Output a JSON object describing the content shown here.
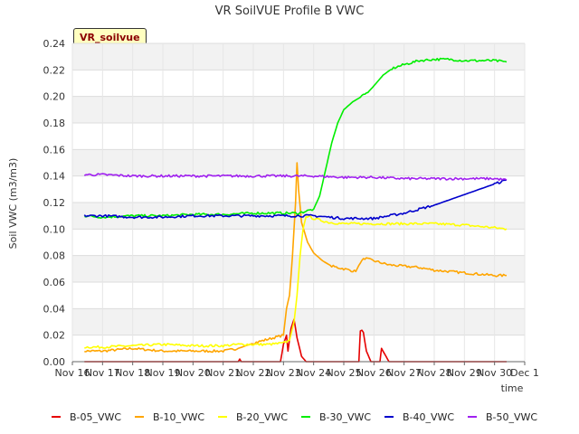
{
  "chart_data": {
    "type": "line",
    "title": "VR SoilVUE Profile B VWC",
    "site_label": "VR_soilvue",
    "xlabel": "time",
    "ylabel": "Soil VWC (m3/m3)",
    "xlim": [
      16,
      31
    ],
    "ylim": [
      0,
      0.24
    ],
    "x_ticks": [
      16,
      17,
      18,
      19,
      20,
      21,
      22,
      23,
      24,
      25,
      26,
      27,
      28,
      29,
      30,
      31
    ],
    "x_tick_labels": [
      "Nov 16",
      "Nov 17",
      "Nov 18",
      "Nov 19",
      "Nov 20",
      "Nov 21",
      "Nov 22",
      "Nov 23",
      "Nov 24",
      "Nov 25",
      "Nov 26",
      "Nov 27",
      "Nov 28",
      "Nov 29",
      "Nov 30",
      "Dec 1"
    ],
    "y_ticks": [
      0.0,
      0.02,
      0.04,
      0.06,
      0.08,
      0.1,
      0.12,
      0.14,
      0.16,
      0.18,
      0.2,
      0.22,
      0.24
    ],
    "y_tick_labels": [
      "0.00",
      "0.02",
      "0.04",
      "0.06",
      "0.08",
      "0.10",
      "0.12",
      "0.14",
      "0.16",
      "0.18",
      "0.20",
      "0.22",
      "0.24"
    ],
    "legend_position": "bottom",
    "series": [
      {
        "name": "B-05_VWC",
        "color": "#e60000",
        "points": [
          [
            16.4,
            0.0
          ],
          [
            21.5,
            0.0
          ],
          [
            21.55,
            0.002
          ],
          [
            21.6,
            0.0
          ],
          [
            22.9,
            0.0
          ],
          [
            23.0,
            0.013
          ],
          [
            23.1,
            0.02
          ],
          [
            23.15,
            0.008
          ],
          [
            23.25,
            0.025
          ],
          [
            23.35,
            0.032
          ],
          [
            23.45,
            0.018
          ],
          [
            23.6,
            0.004
          ],
          [
            23.75,
            0.0
          ],
          [
            25.5,
            0.0
          ],
          [
            25.55,
            0.024
          ],
          [
            25.65,
            0.022
          ],
          [
            25.75,
            0.008
          ],
          [
            25.9,
            0.0
          ],
          [
            26.2,
            0.0
          ],
          [
            26.25,
            0.01
          ],
          [
            26.35,
            0.006
          ],
          [
            26.5,
            0.0
          ],
          [
            30.4,
            0.0
          ]
        ]
      },
      {
        "name": "B-10_VWC",
        "color": "#ffa500",
        "points": [
          [
            16.4,
            0.008
          ],
          [
            17.0,
            0.008
          ],
          [
            18.0,
            0.01
          ],
          [
            19.0,
            0.008
          ],
          [
            20.0,
            0.008
          ],
          [
            21.0,
            0.008
          ],
          [
            21.5,
            0.01
          ],
          [
            22.0,
            0.014
          ],
          [
            22.5,
            0.017
          ],
          [
            23.0,
            0.02
          ],
          [
            23.1,
            0.04
          ],
          [
            23.2,
            0.05
          ],
          [
            23.3,
            0.08
          ],
          [
            23.4,
            0.12
          ],
          [
            23.45,
            0.15
          ],
          [
            23.5,
            0.13
          ],
          [
            23.6,
            0.105
          ],
          [
            23.8,
            0.09
          ],
          [
            24.0,
            0.082
          ],
          [
            24.3,
            0.076
          ],
          [
            24.6,
            0.072
          ],
          [
            25.0,
            0.07
          ],
          [
            25.4,
            0.068
          ],
          [
            25.55,
            0.075
          ],
          [
            25.7,
            0.078
          ],
          [
            26.0,
            0.076
          ],
          [
            26.5,
            0.073
          ],
          [
            27.0,
            0.072
          ],
          [
            27.5,
            0.071
          ],
          [
            28.0,
            0.069
          ],
          [
            28.5,
            0.068
          ],
          [
            29.0,
            0.067
          ],
          [
            29.5,
            0.066
          ],
          [
            30.0,
            0.065
          ],
          [
            30.4,
            0.065
          ]
        ]
      },
      {
        "name": "B-20_VWC",
        "color": "#ffff00",
        "points": [
          [
            16.4,
            0.011
          ],
          [
            17.0,
            0.011
          ],
          [
            18.0,
            0.012
          ],
          [
            19.0,
            0.013
          ],
          [
            20.0,
            0.012
          ],
          [
            21.0,
            0.012
          ],
          [
            21.5,
            0.013
          ],
          [
            22.0,
            0.013
          ],
          [
            22.5,
            0.013
          ],
          [
            23.0,
            0.014
          ],
          [
            23.2,
            0.016
          ],
          [
            23.35,
            0.03
          ],
          [
            23.45,
            0.05
          ],
          [
            23.55,
            0.08
          ],
          [
            23.65,
            0.1
          ],
          [
            23.75,
            0.11
          ],
          [
            24.0,
            0.108
          ],
          [
            24.5,
            0.105
          ],
          [
            25.0,
            0.104
          ],
          [
            25.5,
            0.104
          ],
          [
            26.0,
            0.104
          ],
          [
            27.0,
            0.104
          ],
          [
            28.0,
            0.104
          ],
          [
            29.0,
            0.103
          ],
          [
            29.5,
            0.102
          ],
          [
            30.0,
            0.101
          ],
          [
            30.4,
            0.1
          ]
        ]
      },
      {
        "name": "B-30_VWC",
        "color": "#00ee00",
        "points": [
          [
            16.4,
            0.11
          ],
          [
            17.0,
            0.109
          ],
          [
            18.0,
            0.11
          ],
          [
            19.0,
            0.11
          ],
          [
            20.0,
            0.111
          ],
          [
            21.0,
            0.111
          ],
          [
            22.0,
            0.112
          ],
          [
            23.0,
            0.112
          ],
          [
            23.5,
            0.112
          ],
          [
            24.0,
            0.115
          ],
          [
            24.2,
            0.125
          ],
          [
            24.4,
            0.145
          ],
          [
            24.6,
            0.165
          ],
          [
            24.8,
            0.18
          ],
          [
            25.0,
            0.19
          ],
          [
            25.3,
            0.196
          ],
          [
            25.6,
            0.2
          ],
          [
            25.8,
            0.203
          ],
          [
            26.0,
            0.208
          ],
          [
            26.3,
            0.216
          ],
          [
            26.6,
            0.221
          ],
          [
            27.0,
            0.224
          ],
          [
            27.5,
            0.227
          ],
          [
            28.0,
            0.228
          ],
          [
            28.5,
            0.228
          ],
          [
            29.0,
            0.227
          ],
          [
            29.5,
            0.227
          ],
          [
            30.0,
            0.227
          ],
          [
            30.4,
            0.226
          ]
        ]
      },
      {
        "name": "B-40_VWC",
        "color": "#0000cc",
        "points": [
          [
            16.4,
            0.11
          ],
          [
            17.0,
            0.11
          ],
          [
            18.0,
            0.109
          ],
          [
            19.0,
            0.109
          ],
          [
            20.0,
            0.11
          ],
          [
            21.0,
            0.11
          ],
          [
            22.0,
            0.11
          ],
          [
            23.0,
            0.11
          ],
          [
            24.0,
            0.11
          ],
          [
            24.5,
            0.109
          ],
          [
            25.0,
            0.108
          ],
          [
            25.5,
            0.108
          ],
          [
            26.0,
            0.108
          ],
          [
            26.5,
            0.11
          ],
          [
            27.0,
            0.112
          ],
          [
            27.5,
            0.115
          ],
          [
            28.0,
            0.118
          ],
          [
            28.5,
            0.122
          ],
          [
            29.0,
            0.126
          ],
          [
            29.5,
            0.13
          ],
          [
            30.0,
            0.134
          ],
          [
            30.4,
            0.137
          ]
        ]
      },
      {
        "name": "B-50_VWC",
        "color": "#a020f0",
        "points": [
          [
            16.4,
            0.141
          ],
          [
            17.0,
            0.141
          ],
          [
            18.0,
            0.14
          ],
          [
            19.0,
            0.14
          ],
          [
            20.0,
            0.14
          ],
          [
            21.0,
            0.14
          ],
          [
            22.0,
            0.14
          ],
          [
            23.0,
            0.14
          ],
          [
            24.0,
            0.14
          ],
          [
            25.0,
            0.139
          ],
          [
            26.0,
            0.139
          ],
          [
            27.0,
            0.138
          ],
          [
            28.0,
            0.138
          ],
          [
            29.0,
            0.138
          ],
          [
            30.0,
            0.138
          ],
          [
            30.4,
            0.137
          ]
        ]
      }
    ]
  }
}
